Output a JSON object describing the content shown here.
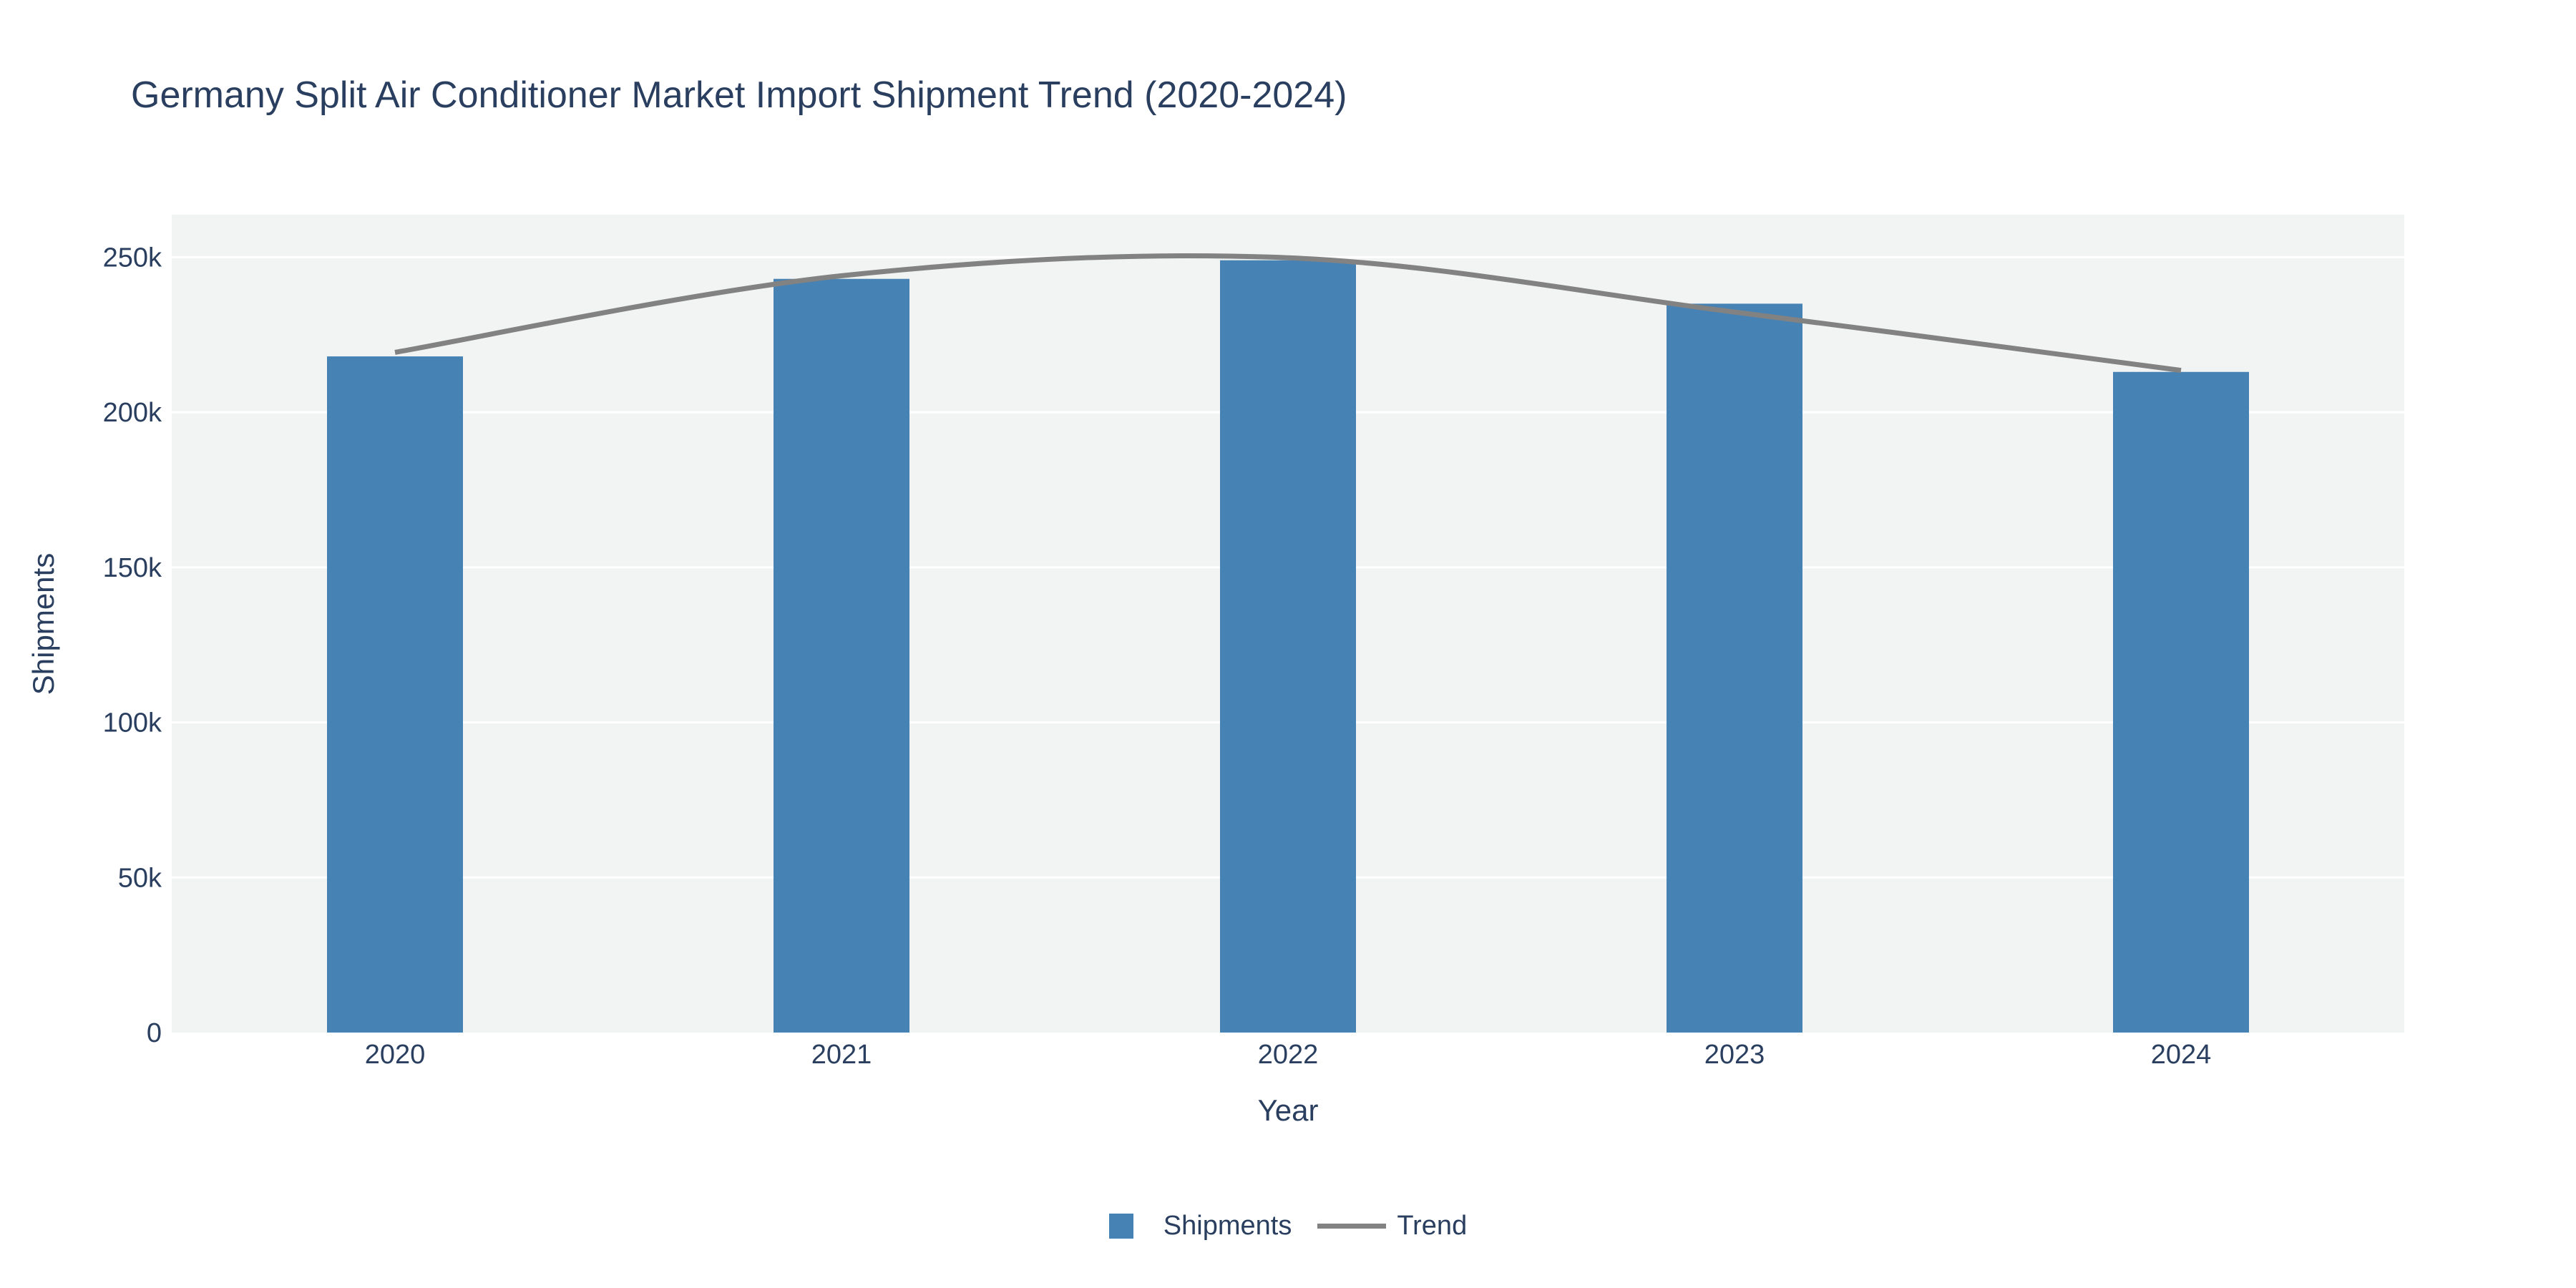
{
  "title": "Germany Split Air Conditioner Market Import Shipment Trend (2020-2024)",
  "chart_data": {
    "type": "bar",
    "title": "Germany Split Air Conditioner Market Import Shipment Trend (2020-2024)",
    "xlabel": "Year",
    "ylabel": "Shipments",
    "categories": [
      "2020",
      "2021",
      "2022",
      "2023",
      "2024"
    ],
    "series": [
      {
        "name": "Shipments",
        "kind": "bar",
        "color": "#4682b4",
        "values": [
          218000,
          243000,
          249000,
          235000,
          213000
        ]
      },
      {
        "name": "Trend",
        "kind": "line",
        "shape": "spline",
        "color": "#828282",
        "values": [
          219300,
          244000,
          249800,
          232300,
          213500
        ]
      }
    ],
    "ylim": [
      0,
      263700
    ],
    "yticks": [
      {
        "value": 0,
        "label": "0"
      },
      {
        "value": 50000,
        "label": "50k"
      },
      {
        "value": 100000,
        "label": "100k"
      },
      {
        "value": 150000,
        "label": "150k"
      },
      {
        "value": 200000,
        "label": "200k"
      },
      {
        "value": 250000,
        "label": "250k"
      }
    ],
    "grid": true,
    "grid_color": "#ffffff",
    "plot_bg": "#f2f3f3",
    "paper_bg": "#ffffff",
    "text_color": "#2a3f5f",
    "legend_position": "bottom-center"
  },
  "legend": {
    "items": [
      {
        "label": "Shipments",
        "swatch": "square",
        "color": "#4682b4"
      },
      {
        "label": "Trend",
        "swatch": "line",
        "color": "#828282"
      }
    ]
  }
}
